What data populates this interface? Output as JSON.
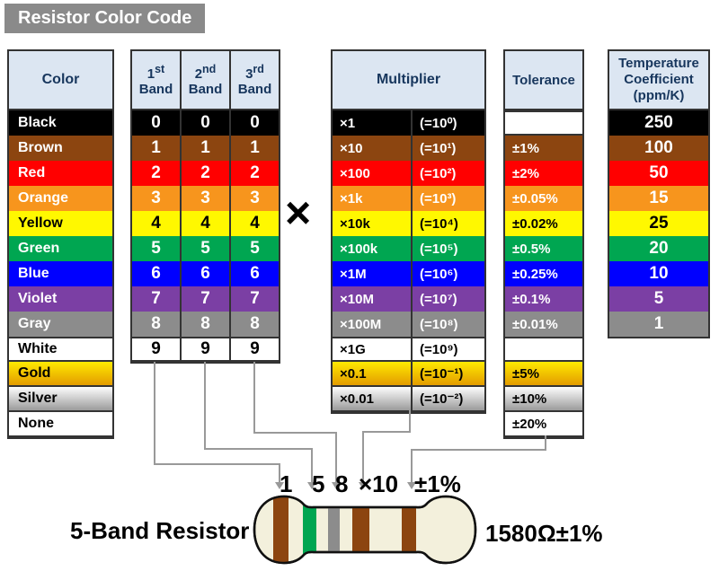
{
  "title": "Resistor Color Code",
  "multiply_symbol": "×",
  "headers": {
    "color": "Color",
    "bands": [
      {
        "num": "1",
        "suffix": "st",
        "word": "Band"
      },
      {
        "num": "2",
        "suffix": "nd",
        "word": "Band"
      },
      {
        "num": "3",
        "suffix": "rd",
        "word": "Band"
      }
    ],
    "multiplier": "Multiplier",
    "tolerance": "Tolerance",
    "tempco": "Temperature Coefficient (ppm/K)"
  },
  "rows": [
    {
      "name": "Black",
      "bg": "#000000",
      "fg": "#FFFFFF",
      "digit": "0",
      "multiplier": "×1",
      "power": "(=10⁰)",
      "tolerance": "",
      "tempco": "250"
    },
    {
      "name": "Brown",
      "bg": "#8C4510",
      "fg": "#FFFFFF",
      "digit": "1",
      "multiplier": "×10",
      "power": "(=10¹)",
      "tolerance": "±1%",
      "tempco": "100"
    },
    {
      "name": "Red",
      "bg": "#FF0000",
      "fg": "#FFFFFF",
      "digit": "2",
      "multiplier": "×100",
      "power": "(=10²)",
      "tolerance": "±2%",
      "tempco": "50"
    },
    {
      "name": "Orange",
      "bg": "#F7951D",
      "fg": "#FFFFFF",
      "digit": "3",
      "multiplier": "×1k",
      "power": "(=10³)",
      "tolerance": "±0.05%",
      "tempco": "15"
    },
    {
      "name": "Yellow",
      "bg": "#FFF800",
      "fg": "#000000",
      "digit": "4",
      "multiplier": "×10k",
      "power": "(=10⁴)",
      "tolerance": "±0.02%",
      "tempco": "25"
    },
    {
      "name": "Green",
      "bg": "#00A651",
      "fg": "#FFFFFF",
      "digit": "5",
      "multiplier": "×100k",
      "power": "(=10⁵)",
      "tolerance": "±0.5%",
      "tempco": "20"
    },
    {
      "name": "Blue",
      "bg": "#0000FF",
      "fg": "#FFFFFF",
      "digit": "6",
      "multiplier": "×1M",
      "power": "(=10⁶)",
      "tolerance": "±0.25%",
      "tempco": "10"
    },
    {
      "name": "Violet",
      "bg": "#7B3FA4",
      "fg": "#FFFFFF",
      "digit": "7",
      "multiplier": "×10M",
      "power": "(=10⁷)",
      "tolerance": "±0.1%",
      "tempco": "5"
    },
    {
      "name": "Gray",
      "bg": "#8C8C8C",
      "fg": "#FFFFFF",
      "digit": "8",
      "multiplier": "×100M",
      "power": "(=10⁸)",
      "tolerance": "±0.01%",
      "tempco": "1"
    },
    {
      "name": "White",
      "bg": "#FFFFFF",
      "fg": "#000000",
      "digit": "9",
      "multiplier": "×1G",
      "power": "(=10⁹)",
      "tolerance": "",
      "tempco": null
    },
    {
      "name": "Gold",
      "bg_gradient": [
        "#FFE900",
        "#E39C00"
      ],
      "fg": "#000000",
      "digit": null,
      "multiplier": "×0.1",
      "power": "(=10⁻¹)",
      "tolerance": "±5%",
      "tempco": null
    },
    {
      "name": "Silver",
      "bg_gradient": [
        "#FDFDFD",
        "#9B9B9B"
      ],
      "fg": "#000000",
      "digit": null,
      "multiplier": "×0.01",
      "power": "(=10⁻²)",
      "tolerance": "±10%",
      "tempco": null
    },
    {
      "name": "None",
      "bg": "#FFFFFF",
      "fg": "#000000",
      "digit": null,
      "multiplier": null,
      "power": null,
      "tolerance": "±20%",
      "tempco": null
    }
  ],
  "resistor": {
    "caption": "5-Band Resistor",
    "result": "1580Ω±1%",
    "band_labels": [
      "1",
      "5",
      "8",
      "×10",
      "±1%"
    ],
    "band_colors": [
      "#8C4510",
      "#00A651",
      "#8C8C8C",
      "#8C4510",
      "#8C4510"
    ],
    "body_color": "#F3F0DC",
    "outline_color": "#111111",
    "connector_color": "#999999"
  }
}
